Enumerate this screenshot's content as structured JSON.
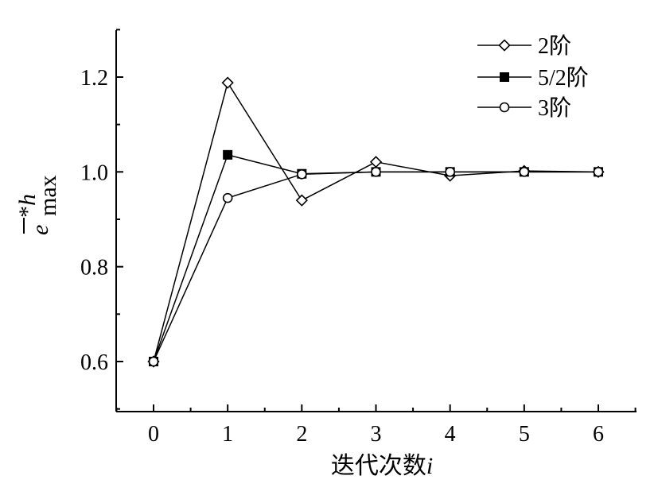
{
  "chart_data": {
    "type": "line",
    "title": "",
    "xlabel": "迭代次数",
    "xlabel_italic_var": "i",
    "ylabel": "e",
    "ylabel_superscript": "*h",
    "ylabel_subscript": "max",
    "x": [
      0,
      1,
      2,
      3,
      4,
      5,
      6
    ],
    "xlim": [
      -0.5,
      6.5
    ],
    "ylim": [
      0.5,
      1.3
    ],
    "x_ticks": [
      "0",
      "1",
      "2",
      "3",
      "4",
      "5",
      "6"
    ],
    "y_ticks": [
      "0.6",
      "0.8",
      "1.0",
      "1.2"
    ],
    "y_tick_values": [
      0.6,
      0.8,
      1.0,
      1.2
    ],
    "grid": false,
    "legend_position": "top-right",
    "series": [
      {
        "name": "2阶",
        "marker": "diamond-open",
        "values": [
          0.6,
          1.188,
          0.94,
          1.021,
          0.992,
          1.002,
          1.0
        ]
      },
      {
        "name": "5/2阶",
        "marker": "square-filled",
        "values": [
          0.6,
          1.036,
          0.996,
          1.0,
          1.0,
          1.0,
          1.0
        ]
      },
      {
        "name": "3阶",
        "marker": "circle-open",
        "values": [
          0.6,
          0.945,
          0.995,
          1.0,
          1.0,
          1.0,
          1.0
        ]
      }
    ]
  }
}
